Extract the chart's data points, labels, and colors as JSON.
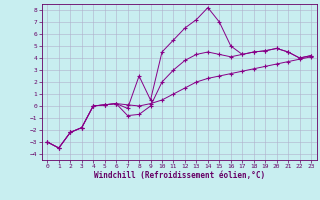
{
  "xlabel": "Windchill (Refroidissement éolien,°C)",
  "bg_color": "#c8eef0",
  "grid_color": "#b0b0cc",
  "line_color": "#880088",
  "xlim": [
    -0.5,
    23.5
  ],
  "ylim": [
    -4.5,
    8.5
  ],
  "xticks": [
    0,
    1,
    2,
    3,
    4,
    5,
    6,
    7,
    8,
    9,
    10,
    11,
    12,
    13,
    14,
    15,
    16,
    17,
    18,
    19,
    20,
    21,
    22,
    23
  ],
  "yticks": [
    -4,
    -3,
    -2,
    -1,
    0,
    1,
    2,
    3,
    4,
    5,
    6,
    7,
    8
  ],
  "line1_x": [
    0,
    1,
    2,
    3,
    4,
    5,
    6,
    7,
    8,
    9,
    10,
    11,
    12,
    13,
    14,
    15,
    16,
    17,
    18,
    19,
    20,
    21,
    22,
    23
  ],
  "line1_y": [
    -3.0,
    -3.5,
    -2.2,
    -1.8,
    0.0,
    0.1,
    0.2,
    0.1,
    0.0,
    0.2,
    0.5,
    1.0,
    1.5,
    2.0,
    2.3,
    2.5,
    2.7,
    2.9,
    3.1,
    3.3,
    3.5,
    3.7,
    3.9,
    4.1
  ],
  "line2_x": [
    0,
    1,
    2,
    3,
    4,
    5,
    6,
    7,
    8,
    9,
    10,
    11,
    12,
    13,
    14,
    15,
    16,
    17,
    18,
    19,
    20,
    21,
    22,
    23
  ],
  "line2_y": [
    -3.0,
    -3.5,
    -2.2,
    -1.8,
    0.0,
    0.1,
    0.2,
    -0.2,
    2.5,
    0.5,
    4.5,
    5.5,
    6.5,
    7.2,
    8.2,
    7.0,
    5.0,
    4.3,
    4.5,
    4.6,
    4.8,
    4.5,
    4.0,
    4.2
  ],
  "line3_x": [
    0,
    1,
    2,
    3,
    4,
    5,
    6,
    7,
    8,
    9,
    10,
    11,
    12,
    13,
    14,
    15,
    16,
    17,
    18,
    19,
    20,
    21,
    22,
    23
  ],
  "line3_y": [
    -3.0,
    -3.5,
    -2.2,
    -1.8,
    0.0,
    0.1,
    0.2,
    -0.8,
    -0.7,
    0.0,
    2.0,
    3.0,
    3.8,
    4.3,
    4.5,
    4.3,
    4.1,
    4.3,
    4.5,
    4.6,
    4.8,
    4.5,
    4.0,
    4.2
  ]
}
